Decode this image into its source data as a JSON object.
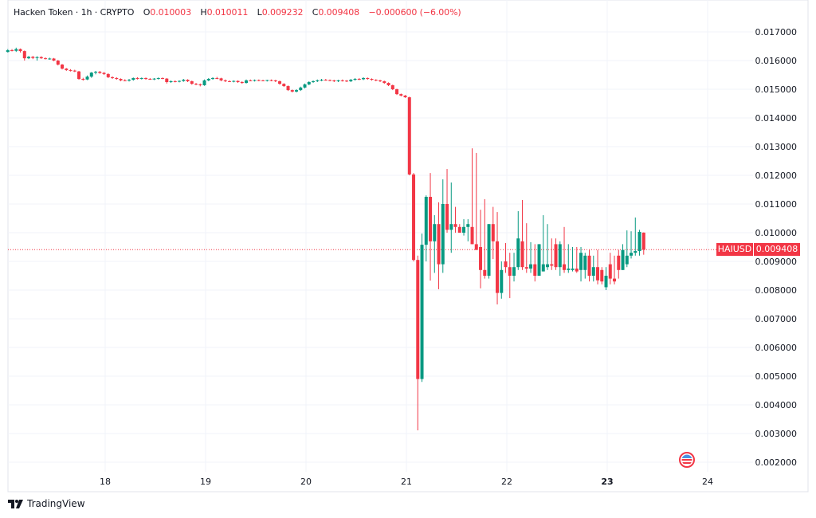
{
  "header": {
    "symbol_name": "Hacken Token",
    "interval": "1h",
    "exchange": "CRYPTO",
    "open_label": "O",
    "open": "0.010003",
    "high_label": "H",
    "high": "0.010011",
    "low_label": "L",
    "low": "0.009232",
    "close_label": "C",
    "close": "0.009408",
    "change": "−0.000600 (−6.00%)"
  },
  "last_price": {
    "ticker": "HAIUSD",
    "value": "0.009408"
  },
  "brand": "TradingView",
  "event_icon": "us-flag-icon",
  "colors": {
    "up": "#089981",
    "down": "#f23645",
    "grid": "#f0f3fa",
    "text": "#131722"
  },
  "chart_data": {
    "type": "candlestick",
    "interval": "1h",
    "x_ticks": [
      "18",
      "19",
      "20",
      "21",
      "22",
      "23",
      "24"
    ],
    "x_range_days": [
      17.03,
      24.4
    ],
    "first_candle_day": 17.03,
    "y_ticks": [
      "0.017000",
      "0.016000",
      "0.015000",
      "0.014000",
      "0.013000",
      "0.012000",
      "0.011000",
      "0.010000",
      "0.009000",
      "0.008000",
      "0.007000",
      "0.006000",
      "0.005000",
      "0.004000",
      "0.003000",
      "0.002000"
    ],
    "ylim": [
      0.002,
      0.017
    ],
    "grid": true,
    "last_price": 0.009408,
    "ohlc": [
      [
        0.0163,
        0.0164,
        0.01628,
        0.01636
      ],
      [
        0.01636,
        0.0164,
        0.01632,
        0.01634
      ],
      [
        0.01634,
        0.01645,
        0.0163,
        0.0164
      ],
      [
        0.0164,
        0.01642,
        0.01628,
        0.01633
      ],
      [
        0.01633,
        0.01635,
        0.016,
        0.01608
      ],
      [
        0.01608,
        0.01616,
        0.01605,
        0.01613
      ],
      [
        0.01613,
        0.01616,
        0.01605,
        0.01609
      ],
      [
        0.01609,
        0.01615,
        0.016,
        0.01612
      ],
      [
        0.01612,
        0.01615,
        0.01606,
        0.01608
      ],
      [
        0.01608,
        0.01611,
        0.01604,
        0.01606
      ],
      [
        0.01606,
        0.0161,
        0.01603,
        0.01607
      ],
      [
        0.01607,
        0.01609,
        0.01598,
        0.016
      ],
      [
        0.016,
        0.01602,
        0.01583,
        0.01586
      ],
      [
        0.01586,
        0.01588,
        0.01569,
        0.01572
      ],
      [
        0.01572,
        0.01574,
        0.01564,
        0.01567
      ],
      [
        0.01567,
        0.0157,
        0.01562,
        0.01565
      ],
      [
        0.01565,
        0.01568,
        0.0156,
        0.01562
      ],
      [
        0.01562,
        0.01564,
        0.01533,
        0.01536
      ],
      [
        0.01536,
        0.0154,
        0.0153,
        0.01534
      ],
      [
        0.01534,
        0.01548,
        0.01532,
        0.01544
      ],
      [
        0.01544,
        0.0156,
        0.0154,
        0.01558
      ],
      [
        0.01558,
        0.01564,
        0.01552,
        0.01561
      ],
      [
        0.01561,
        0.01564,
        0.01554,
        0.01557
      ],
      [
        0.01557,
        0.0156,
        0.0155,
        0.01553
      ],
      [
        0.01553,
        0.01556,
        0.01539,
        0.01542
      ],
      [
        0.01542,
        0.01545,
        0.01536,
        0.01539
      ],
      [
        0.01539,
        0.01542,
        0.01533,
        0.01536
      ],
      [
        0.01536,
        0.01538,
        0.01528,
        0.01531
      ],
      [
        0.01531,
        0.01535,
        0.01528,
        0.0153
      ],
      [
        0.0153,
        0.01536,
        0.01527,
        0.01533
      ],
      [
        0.01533,
        0.01541,
        0.0153,
        0.01539
      ],
      [
        0.01539,
        0.01542,
        0.01534,
        0.01537
      ],
      [
        0.01537,
        0.01541,
        0.01534,
        0.01539
      ],
      [
        0.01539,
        0.01541,
        0.01533,
        0.01536
      ],
      [
        0.01536,
        0.01539,
        0.01533,
        0.01535
      ],
      [
        0.01535,
        0.01539,
        0.01532,
        0.01537
      ],
      [
        0.01537,
        0.01541,
        0.01534,
        0.01539
      ],
      [
        0.01539,
        0.01541,
        0.01535,
        0.01537
      ],
      [
        0.01537,
        0.01539,
        0.0152,
        0.01525
      ],
      [
        0.01525,
        0.01531,
        0.01522,
        0.01528
      ],
      [
        0.01528,
        0.01531,
        0.01524,
        0.01527
      ],
      [
        0.01527,
        0.01531,
        0.01524,
        0.01529
      ],
      [
        0.01529,
        0.01536,
        0.01526,
        0.01533
      ],
      [
        0.01533,
        0.01535,
        0.01525,
        0.01528
      ],
      [
        0.01528,
        0.0153,
        0.01516,
        0.01519
      ],
      [
        0.01519,
        0.01522,
        0.01514,
        0.01517
      ],
      [
        0.01517,
        0.0152,
        0.0151,
        0.01514
      ],
      [
        0.01514,
        0.01534,
        0.01512,
        0.01531
      ],
      [
        0.01531,
        0.01539,
        0.01528,
        0.01536
      ],
      [
        0.01536,
        0.01542,
        0.01533,
        0.01539
      ],
      [
        0.01539,
        0.01543,
        0.01535,
        0.01538
      ],
      [
        0.01538,
        0.0154,
        0.01528,
        0.01531
      ],
      [
        0.01531,
        0.01534,
        0.01525,
        0.01528
      ],
      [
        0.01528,
        0.01531,
        0.01525,
        0.01527
      ],
      [
        0.01527,
        0.01531,
        0.01524,
        0.01529
      ],
      [
        0.01529,
        0.01531,
        0.01522,
        0.01525
      ],
      [
        0.01525,
        0.01528,
        0.01519,
        0.01522
      ],
      [
        0.01522,
        0.01534,
        0.0152,
        0.01531
      ],
      [
        0.01531,
        0.01534,
        0.01528,
        0.0153
      ],
      [
        0.0153,
        0.01534,
        0.01527,
        0.01532
      ],
      [
        0.01532,
        0.01534,
        0.01528,
        0.01531
      ],
      [
        0.01531,
        0.01533,
        0.01528,
        0.0153
      ],
      [
        0.0153,
        0.01533,
        0.01527,
        0.01532
      ],
      [
        0.01532,
        0.01534,
        0.01528,
        0.01531
      ],
      [
        0.01531,
        0.01533,
        0.01525,
        0.01528
      ],
      [
        0.01528,
        0.0153,
        0.01516,
        0.01519
      ],
      [
        0.01519,
        0.01521,
        0.01508,
        0.01511
      ],
      [
        0.01511,
        0.01513,
        0.01494,
        0.01497
      ],
      [
        0.01497,
        0.01499,
        0.01489,
        0.01492
      ],
      [
        0.01492,
        0.015,
        0.01489,
        0.01497
      ],
      [
        0.01497,
        0.01509,
        0.01494,
        0.01506
      ],
      [
        0.01506,
        0.0152,
        0.01503,
        0.01517
      ],
      [
        0.01517,
        0.01528,
        0.01514,
        0.01525
      ],
      [
        0.01525,
        0.01531,
        0.01522,
        0.01528
      ],
      [
        0.01528,
        0.01534,
        0.01525,
        0.01531
      ],
      [
        0.01531,
        0.01536,
        0.01528,
        0.01533
      ],
      [
        0.01533,
        0.01536,
        0.0153,
        0.01532
      ],
      [
        0.01532,
        0.01534,
        0.01528,
        0.01531
      ],
      [
        0.01531,
        0.01533,
        0.01525,
        0.01528
      ],
      [
        0.01528,
        0.01533,
        0.01525,
        0.01531
      ],
      [
        0.01531,
        0.01534,
        0.01527,
        0.0153
      ],
      [
        0.0153,
        0.01532,
        0.01525,
        0.01528
      ],
      [
        0.01528,
        0.01536,
        0.01525,
        0.01533
      ],
      [
        0.01533,
        0.01539,
        0.0153,
        0.01536
      ],
      [
        0.01536,
        0.01539,
        0.01532,
        0.01535
      ],
      [
        0.01535,
        0.01542,
        0.01532,
        0.01539
      ],
      [
        0.01539,
        0.01541,
        0.01533,
        0.01536
      ],
      [
        0.01536,
        0.01538,
        0.0153,
        0.01533
      ],
      [
        0.01533,
        0.01535,
        0.01528,
        0.01531
      ],
      [
        0.01531,
        0.01533,
        0.01525,
        0.01528
      ],
      [
        0.01528,
        0.0153,
        0.01519,
        0.01522
      ],
      [
        0.01522,
        0.01524,
        0.01511,
        0.01514
      ],
      [
        0.01514,
        0.01516,
        0.01497,
        0.015
      ],
      [
        0.015,
        0.01502,
        0.0148,
        0.01483
      ],
      [
        0.01483,
        0.01485,
        0.01475,
        0.01478
      ],
      [
        0.01478,
        0.0148,
        0.0147,
        0.01472
      ],
      [
        0.01472,
        0.01474,
        0.012,
        0.01203
      ],
      [
        0.01203,
        0.01208,
        0.009,
        0.00905
      ],
      [
        0.00905,
        0.0092,
        0.00311,
        0.0049
      ],
      [
        0.0049,
        0.00997,
        0.0048,
        0.00958
      ],
      [
        0.00958,
        0.0113,
        0.009,
        0.01125
      ],
      [
        0.01125,
        0.01208,
        0.00833,
        0.0097
      ],
      [
        0.0097,
        0.01061,
        0.0086,
        0.0103
      ],
      [
        0.0103,
        0.01106,
        0.00803,
        0.0089
      ],
      [
        0.0089,
        0.01186,
        0.0086,
        0.011
      ],
      [
        0.011,
        0.01222,
        0.01,
        0.0101
      ],
      [
        0.0101,
        0.01175,
        0.0093,
        0.0103
      ],
      [
        0.0103,
        0.0109,
        0.01,
        0.0102
      ],
      [
        0.0102,
        0.0103,
        0.01,
        0.01
      ],
      [
        0.01,
        0.01047,
        0.0099,
        0.0102
      ],
      [
        0.0102,
        0.01047,
        0.0097,
        0.0103
      ],
      [
        0.0102,
        0.01294,
        0.0096,
        0.0096
      ],
      [
        0.0096,
        0.01278,
        0.0094,
        0.0094
      ],
      [
        0.0095,
        0.0108,
        0.00806,
        0.0087
      ],
      [
        0.0087,
        0.01117,
        0.0084,
        0.0085
      ],
      [
        0.0085,
        0.0103,
        0.0084,
        0.0103
      ],
      [
        0.0103,
        0.0109,
        0.00908,
        0.0097
      ],
      [
        0.0097,
        0.01072,
        0.0075,
        0.0079
      ],
      [
        0.0079,
        0.009,
        0.0077,
        0.0087
      ],
      [
        0.009,
        0.00964,
        0.0086,
        0.0088
      ],
      [
        0.0088,
        0.0093,
        0.00772,
        0.0085
      ],
      [
        0.0085,
        0.0093,
        0.0083,
        0.0088
      ],
      [
        0.0088,
        0.01075,
        0.0087,
        0.0098
      ],
      [
        0.0097,
        0.01114,
        0.0087,
        0.0088
      ],
      [
        0.0088,
        0.01033,
        0.0086,
        0.00875
      ],
      [
        0.00875,
        0.00967,
        0.0086,
        0.0089
      ],
      [
        0.0089,
        0.0096,
        0.0083,
        0.0085
      ],
      [
        0.0085,
        0.0096,
        0.0085,
        0.0096
      ],
      [
        0.00865,
        0.01061,
        0.00865,
        0.0089
      ],
      [
        0.0088,
        0.0103,
        0.0087,
        0.0089
      ],
      [
        0.0089,
        0.0098,
        0.0087,
        0.00885
      ],
      [
        0.0096,
        0.0098,
        0.0087,
        0.0088
      ],
      [
        0.0088,
        0.0097,
        0.0085,
        0.0096
      ],
      [
        0.0089,
        0.0102,
        0.0086,
        0.0087
      ],
      [
        0.0087,
        0.0096,
        0.0086,
        0.00875
      ],
      [
        0.0087,
        0.0095,
        0.00865,
        0.00875
      ],
      [
        0.00875,
        0.0095,
        0.0086,
        0.00865
      ],
      [
        0.0087,
        0.0095,
        0.0083,
        0.0093
      ],
      [
        0.0087,
        0.0093,
        0.0084,
        0.0092
      ],
      [
        0.0092,
        0.0094,
        0.0083,
        0.0085
      ],
      [
        0.0085,
        0.0092,
        0.0083,
        0.0088
      ],
      [
        0.0088,
        0.0094,
        0.0082,
        0.00834
      ],
      [
        0.0087,
        0.0088,
        0.0082,
        0.0083
      ],
      [
        0.0081,
        0.0088,
        0.008,
        0.0085
      ],
      [
        0.0089,
        0.0093,
        0.0082,
        0.0084
      ],
      [
        0.0084,
        0.0092,
        0.0082,
        0.0083
      ],
      [
        0.0092,
        0.0094,
        0.0084,
        0.0087
      ],
      [
        0.0087,
        0.0096,
        0.0087,
        0.0094
      ],
      [
        0.0089,
        0.01008,
        0.0088,
        0.0092
      ],
      [
        0.0092,
        0.01005,
        0.0091,
        0.0093
      ],
      [
        0.0093,
        0.01053,
        0.0092,
        0.00936
      ],
      [
        0.00936,
        0.0101,
        0.0092,
        0.01003
      ],
      [
        0.010003,
        0.010011,
        0.009232,
        0.009408
      ]
    ]
  }
}
